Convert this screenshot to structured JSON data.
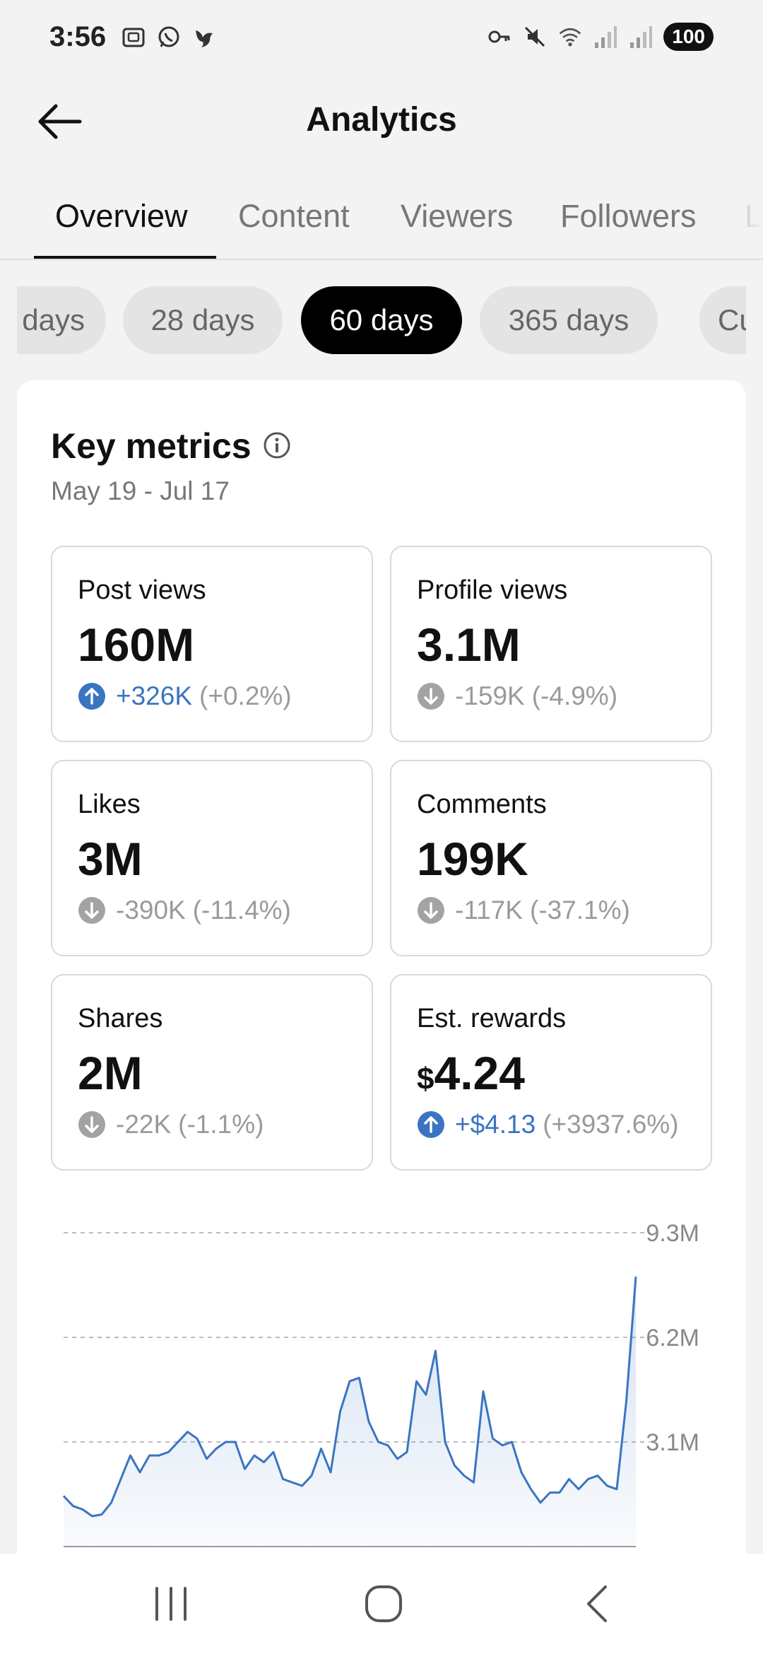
{
  "status_bar": {
    "time": "3:56",
    "battery": "100",
    "left_icons": [
      "screenshot-icon",
      "whatsapp-icon",
      "bird-icon"
    ],
    "right_icons": [
      "key-icon",
      "mute-icon",
      "wifi-icon",
      "signal-icon",
      "signal-icon"
    ]
  },
  "header": {
    "title": "Analytics",
    "back_icon": "arrow-left-icon"
  },
  "tabs": [
    {
      "label": "Overview",
      "active": true
    },
    {
      "label": "Content",
      "active": false
    },
    {
      "label": "Viewers",
      "active": false
    },
    {
      "label": "Followers",
      "active": false
    },
    {
      "label": "L",
      "active": false
    }
  ],
  "ranges": [
    {
      "label": "days",
      "active": false
    },
    {
      "label": "28 days",
      "active": false
    },
    {
      "label": "60 days",
      "active": true
    },
    {
      "label": "365 days",
      "active": false
    },
    {
      "label": "Cus",
      "active": false
    }
  ],
  "card": {
    "title": "Key metrics",
    "date_range": "May 19 - Jul 17",
    "metrics": [
      {
        "label": "Post views",
        "currency": "",
        "value": "160M",
        "change": "+326K",
        "pct": "(+0.2%)",
        "direction": "up",
        "selected": true
      },
      {
        "label": "Profile views",
        "currency": "",
        "value": "3.1M",
        "change": "-159K",
        "pct": "(-4.9%)",
        "direction": "down",
        "selected": false
      },
      {
        "label": "Likes",
        "currency": "",
        "value": "3M",
        "change": "-390K",
        "pct": "(-11.4%)",
        "direction": "down",
        "selected": false
      },
      {
        "label": "Comments",
        "currency": "",
        "value": "199K",
        "change": "-117K",
        "pct": "(-37.1%)",
        "direction": "down",
        "selected": false
      },
      {
        "label": "Shares",
        "currency": "",
        "value": "2M",
        "change": "-22K",
        "pct": "(-1.1%)",
        "direction": "down",
        "selected": false
      },
      {
        "label": "Est. rewards",
        "currency": "$",
        "value": "4.24",
        "change": "+$4.13",
        "pct": "(+3937.6%)",
        "direction": "up",
        "selected": false
      }
    ]
  },
  "chart_data": {
    "type": "area",
    "title": "",
    "xlabel": "",
    "ylabel": "",
    "yticks": [
      "9.3M",
      "6.2M",
      "3.1M"
    ],
    "ylim": [
      0,
      9300000
    ],
    "grid": true,
    "color": "#3a74c2",
    "series": [
      {
        "values": [
          1500000,
          1200000,
          1100000,
          900000,
          950000,
          1300000,
          2000000,
          2700000,
          2200000,
          2700000,
          2700000,
          2800000,
          3100000,
          3400000,
          3200000,
          2600000,
          2900000,
          3100000,
          3100000,
          2300000,
          2700000,
          2500000,
          2800000,
          2000000,
          1900000,
          1800000,
          2100000,
          2900000,
          2200000,
          4000000,
          4900000,
          5000000,
          3700000,
          3100000,
          3000000,
          2600000,
          2800000,
          4900000,
          4500000,
          5800000,
          3100000,
          2400000,
          2100000,
          1900000,
          4600000,
          3200000,
          3000000,
          3100000,
          2200000,
          1700000,
          1300000,
          1600000,
          1600000,
          2000000,
          1700000,
          2000000,
          2100000,
          1800000,
          1700000,
          4300000,
          8000000
        ]
      }
    ]
  },
  "navbar": {
    "items": [
      "recent-apps-icon",
      "home-icon",
      "back-icon"
    ]
  }
}
